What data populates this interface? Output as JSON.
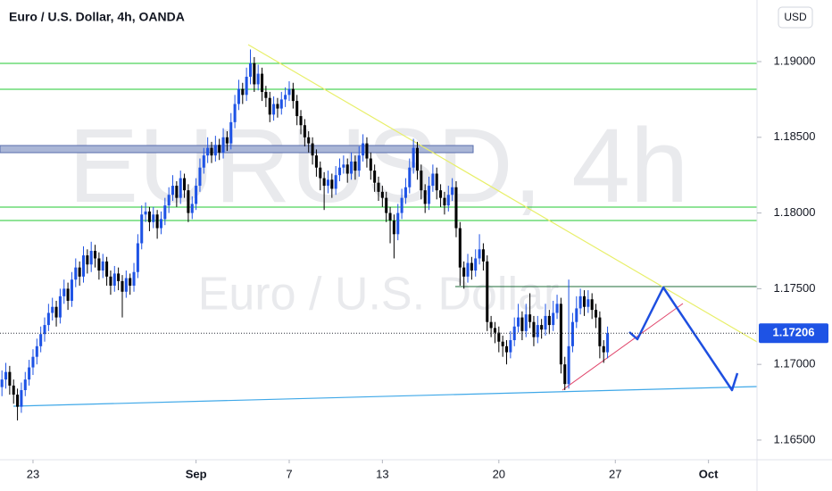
{
  "chart_data": {
    "type": "candlestick",
    "title": "Euro / U.S. Dollar, 4h, OANDA",
    "watermark": "EURUSD, 4h",
    "watermark_sub": "Euro / U.S. Dollar",
    "currency": "USD",
    "up_color": "#1e53e5",
    "down_color": "#000000",
    "grid": false,
    "ylim": [
      1.1637,
      1.19407
    ],
    "yticks": [
      {
        "value": 1.165,
        "label": "1.16500"
      },
      {
        "value": 1.17,
        "label": "1.17000"
      },
      {
        "value": 1.175,
        "label": "1.17500"
      },
      {
        "value": 1.18,
        "label": "1.18000"
      },
      {
        "value": 1.185,
        "label": "1.18500"
      },
      {
        "value": 1.19,
        "label": "1.19000"
      }
    ],
    "xlim": [
      -0.5,
      194.5
    ],
    "xticks": [
      {
        "value": 8,
        "label": "23"
      },
      {
        "value": 50,
        "label": "Sep"
      },
      {
        "value": 74,
        "label": "7"
      },
      {
        "value": 98,
        "label": "13"
      },
      {
        "value": 128,
        "label": "20"
      },
      {
        "value": 158,
        "label": "27"
      },
      {
        "value": 182,
        "label": "Oct"
      }
    ],
    "candles": [
      [
        1.1685,
        1.1696,
        1.1679,
        1.169
      ],
      [
        1.169,
        1.1701,
        1.1684,
        1.1695
      ],
      [
        1.1695,
        1.1699,
        1.168,
        1.1686
      ],
      [
        1.1686,
        1.169,
        1.1674,
        1.168
      ],
      [
        1.168,
        1.1684,
        1.1663,
        1.1672
      ],
      [
        1.1672,
        1.1688,
        1.1668,
        1.1683
      ],
      [
        1.1683,
        1.1695,
        1.1679,
        1.169
      ],
      [
        1.169,
        1.1703,
        1.1686,
        1.1698
      ],
      [
        1.1698,
        1.171,
        1.1693,
        1.1705
      ],
      [
        1.1705,
        1.1717,
        1.17,
        1.1712
      ],
      [
        1.1712,
        1.1725,
        1.1708,
        1.172
      ],
      [
        1.172,
        1.1731,
        1.1715,
        1.1726
      ],
      [
        1.1726,
        1.174,
        1.1722,
        1.1734
      ],
      [
        1.1734,
        1.1744,
        1.1729,
        1.1738
      ],
      [
        1.1738,
        1.1742,
        1.1725,
        1.1731
      ],
      [
        1.1731,
        1.175,
        1.1727,
        1.1745
      ],
      [
        1.1745,
        1.1756,
        1.174,
        1.175
      ],
      [
        1.175,
        1.1754,
        1.1736,
        1.1742
      ],
      [
        1.1742,
        1.1761,
        1.1738,
        1.1756
      ],
      [
        1.1756,
        1.177,
        1.1751,
        1.1764
      ],
      [
        1.1764,
        1.1768,
        1.1752,
        1.1758
      ],
      [
        1.1758,
        1.1778,
        1.1754,
        1.1772
      ],
      [
        1.1772,
        1.1776,
        1.176,
        1.1766
      ],
      [
        1.1766,
        1.1781,
        1.1761,
        1.1775
      ],
      [
        1.1775,
        1.1779,
        1.1764,
        1.177
      ],
      [
        1.177,
        1.1774,
        1.1756,
        1.1762
      ],
      [
        1.1762,
        1.1773,
        1.1757,
        1.1768
      ],
      [
        1.1768,
        1.1771,
        1.1752,
        1.1758
      ],
      [
        1.1758,
        1.1762,
        1.1746,
        1.1752
      ],
      [
        1.1752,
        1.1765,
        1.1748,
        1.176
      ],
      [
        1.176,
        1.1764,
        1.1749,
        1.1755
      ],
      [
        1.1755,
        1.1759,
        1.1731,
        1.1748
      ],
      [
        1.1748,
        1.1762,
        1.1744,
        1.1757
      ],
      [
        1.1757,
        1.176,
        1.1746,
        1.1752
      ],
      [
        1.1752,
        1.1767,
        1.1748,
        1.1761
      ],
      [
        1.1761,
        1.1786,
        1.1757,
        1.178
      ],
      [
        1.178,
        1.1805,
        1.1776,
        1.1799
      ],
      [
        1.1799,
        1.1807,
        1.1794,
        1.1801
      ],
      [
        1.1801,
        1.1804,
        1.1788,
        1.1794
      ],
      [
        1.1794,
        1.1804,
        1.179,
        1.1799
      ],
      [
        1.1799,
        1.1802,
        1.1783,
        1.179
      ],
      [
        1.179,
        1.1801,
        1.1786,
        1.1796
      ],
      [
        1.1796,
        1.181,
        1.1792,
        1.1805
      ],
      [
        1.1805,
        1.1817,
        1.18,
        1.1812
      ],
      [
        1.1812,
        1.1825,
        1.1808,
        1.1818
      ],
      [
        1.1818,
        1.1821,
        1.1804,
        1.181
      ],
      [
        1.181,
        1.1828,
        1.1806,
        1.1823
      ],
      [
        1.1823,
        1.1826,
        1.181,
        1.1815
      ],
      [
        1.1815,
        1.1819,
        1.1794,
        1.18
      ],
      [
        1.18,
        1.1811,
        1.1796,
        1.1806
      ],
      [
        1.1806,
        1.1823,
        1.1802,
        1.1818
      ],
      [
        1.1818,
        1.1836,
        1.1814,
        1.183
      ],
      [
        1.183,
        1.1843,
        1.1826,
        1.1838
      ],
      [
        1.1838,
        1.185,
        1.1833,
        1.1843
      ],
      [
        1.1843,
        1.1847,
        1.1833,
        1.1838
      ],
      [
        1.1838,
        1.1851,
        1.1834,
        1.1845
      ],
      [
        1.1845,
        1.1849,
        1.1835,
        1.184
      ],
      [
        1.184,
        1.1856,
        1.1836,
        1.185
      ],
      [
        1.185,
        1.1854,
        1.1841,
        1.1846
      ],
      [
        1.1846,
        1.1866,
        1.1842,
        1.186
      ],
      [
        1.186,
        1.1878,
        1.1856,
        1.1872
      ],
      [
        1.1872,
        1.1888,
        1.1868,
        1.1882
      ],
      [
        1.1882,
        1.1886,
        1.1872,
        1.1878
      ],
      [
        1.1878,
        1.1896,
        1.1874,
        1.189
      ],
      [
        1.189,
        1.1908,
        1.1885,
        1.1899
      ],
      [
        1.1899,
        1.1903,
        1.188,
        1.1885
      ],
      [
        1.1885,
        1.1898,
        1.1881,
        1.1892
      ],
      [
        1.1892,
        1.1896,
        1.1874,
        1.188
      ],
      [
        1.188,
        1.1884,
        1.187,
        1.1876
      ],
      [
        1.1876,
        1.188,
        1.186,
        1.1865
      ],
      [
        1.1865,
        1.1877,
        1.1861,
        1.1872
      ],
      [
        1.1872,
        1.1876,
        1.1863,
        1.1869
      ],
      [
        1.1869,
        1.188,
        1.1865,
        1.1875
      ],
      [
        1.1875,
        1.1883,
        1.187,
        1.1878
      ],
      [
        1.1878,
        1.1887,
        1.1874,
        1.1882
      ],
      [
        1.1882,
        1.1886,
        1.1869,
        1.1874
      ],
      [
        1.1874,
        1.1878,
        1.1858,
        1.1864
      ],
      [
        1.1864,
        1.1868,
        1.1852,
        1.1858
      ],
      [
        1.1858,
        1.1862,
        1.1844,
        1.185
      ],
      [
        1.185,
        1.1854,
        1.184,
        1.1846
      ],
      [
        1.1846,
        1.185,
        1.1832,
        1.1838
      ],
      [
        1.1838,
        1.1842,
        1.1824,
        1.183
      ],
      [
        1.183,
        1.1834,
        1.1815,
        1.1823
      ],
      [
        1.1823,
        1.1827,
        1.1802,
        1.1818
      ],
      [
        1.1818,
        1.1828,
        1.1813,
        1.1822
      ],
      [
        1.1822,
        1.1826,
        1.181,
        1.1816
      ],
      [
        1.1816,
        1.1831,
        1.1812,
        1.1825
      ],
      [
        1.1825,
        1.1836,
        1.1821,
        1.183
      ],
      [
        1.183,
        1.1838,
        1.1826,
        1.1832
      ],
      [
        1.1832,
        1.1836,
        1.182,
        1.1826
      ],
      [
        1.1826,
        1.184,
        1.1822,
        1.1834
      ],
      [
        1.1834,
        1.1838,
        1.1822,
        1.1828
      ],
      [
        1.1828,
        1.1844,
        1.1824,
        1.1838
      ],
      [
        1.1838,
        1.1852,
        1.1834,
        1.1846
      ],
      [
        1.1846,
        1.185,
        1.183,
        1.1836
      ],
      [
        1.1836,
        1.184,
        1.1822,
        1.1828
      ],
      [
        1.1828,
        1.1832,
        1.1814,
        1.182
      ],
      [
        1.182,
        1.1824,
        1.1808,
        1.1814
      ],
      [
        1.1814,
        1.1818,
        1.1804,
        1.181
      ],
      [
        1.181,
        1.1814,
        1.1794,
        1.18
      ],
      [
        1.18,
        1.1804,
        1.178,
        1.1795
      ],
      [
        1.1795,
        1.1799,
        1.177,
        1.1786
      ],
      [
        1.1786,
        1.1806,
        1.1782,
        1.18
      ],
      [
        1.18,
        1.1816,
        1.1796,
        1.181
      ],
      [
        1.181,
        1.1823,
        1.1806,
        1.1817
      ],
      [
        1.1817,
        1.1836,
        1.1813,
        1.183
      ],
      [
        1.183,
        1.1849,
        1.1826,
        1.1843
      ],
      [
        1.1843,
        1.1847,
        1.1822,
        1.1828
      ],
      [
        1.1828,
        1.1832,
        1.1809,
        1.1815
      ],
      [
        1.1815,
        1.1819,
        1.18,
        1.1806
      ],
      [
        1.1806,
        1.1824,
        1.1802,
        1.1818
      ],
      [
        1.1818,
        1.1832,
        1.1814,
        1.1826
      ],
      [
        1.1826,
        1.183,
        1.1809,
        1.1815
      ],
      [
        1.1815,
        1.1819,
        1.1804,
        1.181
      ],
      [
        1.181,
        1.1814,
        1.1799,
        1.1805
      ],
      [
        1.1805,
        1.1818,
        1.1801,
        1.1812
      ],
      [
        1.1812,
        1.1823,
        1.1808,
        1.1817
      ],
      [
        1.1817,
        1.1821,
        1.1784,
        1.179
      ],
      [
        1.179,
        1.1794,
        1.1752,
        1.1764
      ],
      [
        1.1764,
        1.1768,
        1.175,
        1.1758
      ],
      [
        1.1758,
        1.1773,
        1.1754,
        1.1767
      ],
      [
        1.1767,
        1.1771,
        1.1756,
        1.1762
      ],
      [
        1.1762,
        1.1776,
        1.1758,
        1.177
      ],
      [
        1.177,
        1.1786,
        1.1766,
        1.1776
      ],
      [
        1.1776,
        1.178,
        1.1762,
        1.1768
      ],
      [
        1.1768,
        1.1772,
        1.1722,
        1.1728
      ],
      [
        1.1728,
        1.1732,
        1.1718,
        1.1724
      ],
      [
        1.1724,
        1.1728,
        1.1714,
        1.1721
      ],
      [
        1.1721,
        1.1725,
        1.1708,
        1.1715
      ],
      [
        1.1715,
        1.1719,
        1.1705,
        1.1712
      ],
      [
        1.1712,
        1.1716,
        1.17,
        1.1708
      ],
      [
        1.1708,
        1.1722,
        1.1704,
        1.1716
      ],
      [
        1.1716,
        1.1731,
        1.1712,
        1.1725
      ],
      [
        1.1725,
        1.174,
        1.1721,
        1.1731
      ],
      [
        1.1731,
        1.1735,
        1.1716,
        1.1722
      ],
      [
        1.1722,
        1.174,
        1.1718,
        1.1733
      ],
      [
        1.1733,
        1.1747,
        1.1724,
        1.1728
      ],
      [
        1.1728,
        1.1732,
        1.1712,
        1.1718
      ],
      [
        1.1718,
        1.1732,
        1.1714,
        1.1726
      ],
      [
        1.1726,
        1.173,
        1.1717,
        1.1723
      ],
      [
        1.1723,
        1.174,
        1.1719,
        1.1732
      ],
      [
        1.1732,
        1.1736,
        1.172,
        1.1726
      ],
      [
        1.1726,
        1.1742,
        1.1722,
        1.1734
      ],
      [
        1.1734,
        1.1746,
        1.173,
        1.174
      ],
      [
        1.174,
        1.1744,
        1.1694,
        1.17
      ],
      [
        1.17,
        1.1705,
        1.1683,
        1.1687
      ],
      [
        1.1687,
        1.1756,
        1.1684,
        1.1712
      ],
      [
        1.1712,
        1.1734,
        1.1708,
        1.1728
      ],
      [
        1.1728,
        1.1745,
        1.1724,
        1.1737
      ],
      [
        1.1737,
        1.175,
        1.1733,
        1.1745
      ],
      [
        1.1745,
        1.1749,
        1.1732,
        1.1738
      ],
      [
        1.1738,
        1.1749,
        1.1734,
        1.1743
      ],
      [
        1.1743,
        1.1747,
        1.173,
        1.1736
      ],
      [
        1.1736,
        1.174,
        1.1724,
        1.1731
      ],
      [
        1.1731,
        1.1735,
        1.1704,
        1.1712
      ],
      [
        1.1712,
        1.1716,
        1.1701,
        1.1708
      ],
      [
        1.1708,
        1.1725,
        1.1704,
        1.17206
      ]
    ]
  }
}
